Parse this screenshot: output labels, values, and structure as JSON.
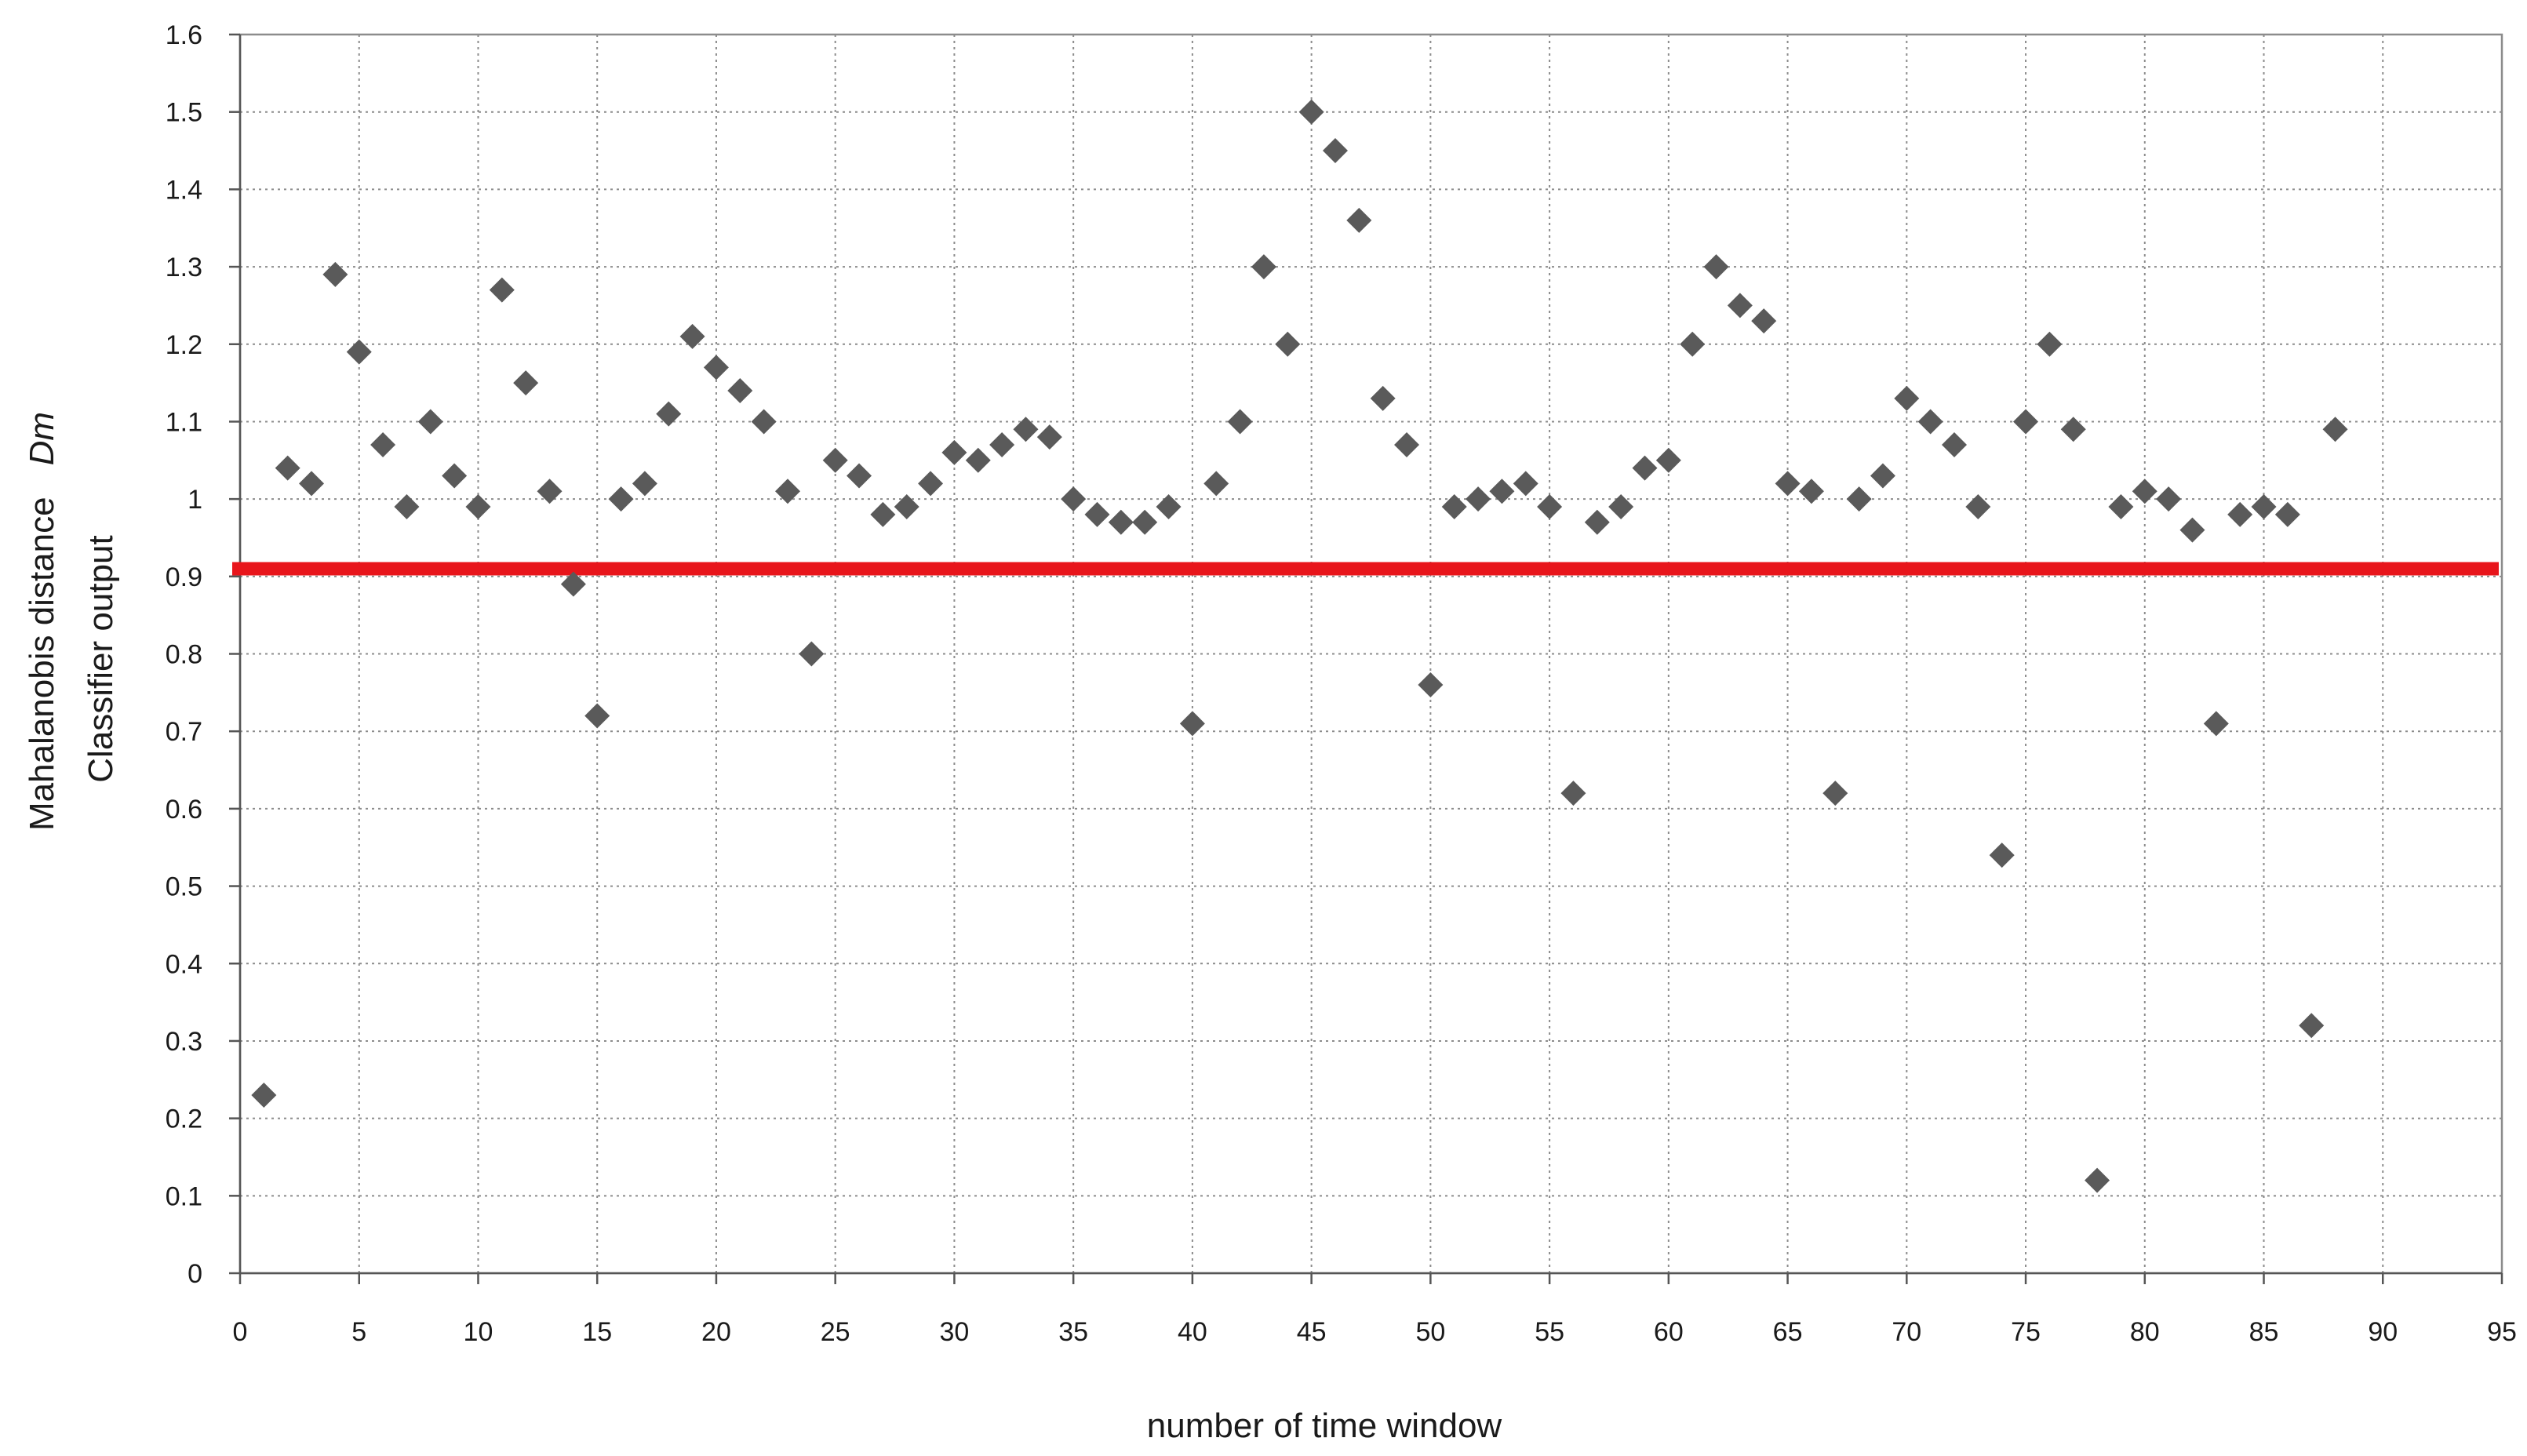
{
  "chart_data": {
    "type": "scatter",
    "xlabel": "number of time window",
    "ylabel_line1": "Mahalanobis distance",
    "ylabel_line1_italic": "Dm",
    "ylabel_line2": "Classifier output",
    "xlim": [
      0,
      95
    ],
    "ylim": [
      0,
      1.6
    ],
    "xticks": [
      0,
      5,
      10,
      15,
      20,
      25,
      30,
      35,
      40,
      45,
      50,
      55,
      60,
      65,
      70,
      75,
      80,
      85,
      90,
      95
    ],
    "yticks": [
      0,
      0.1,
      0.2,
      0.3,
      0.4,
      0.5,
      0.6,
      0.7,
      0.8,
      0.9,
      1,
      1.1,
      1.2,
      1.3,
      1.4,
      1.5,
      1.6
    ],
    "grid": true,
    "marker": "diamond",
    "marker_color": "#5a5a5a",
    "threshold": {
      "y": 0.91,
      "color": "#e8151b"
    },
    "x": [
      1,
      2,
      3,
      4,
      5,
      6,
      7,
      8,
      9,
      10,
      11,
      12,
      13,
      14,
      15,
      16,
      17,
      18,
      19,
      20,
      21,
      22,
      23,
      24,
      25,
      26,
      27,
      28,
      29,
      30,
      31,
      32,
      33,
      34,
      35,
      36,
      37,
      38,
      39,
      40,
      41,
      42,
      43,
      44,
      45,
      46,
      47,
      48,
      49,
      50,
      51,
      52,
      53,
      54,
      55,
      56,
      57,
      58,
      59,
      60,
      61,
      62,
      63,
      64,
      65,
      66,
      67,
      68,
      69,
      70,
      71,
      72,
      73,
      74,
      75,
      76,
      77,
      78,
      79,
      80,
      81,
      82,
      83,
      84,
      85,
      86,
      87,
      88
    ],
    "y": [
      0.23,
      1.04,
      1.02,
      1.29,
      1.19,
      1.07,
      0.99,
      1.1,
      1.03,
      0.99,
      1.27,
      1.15,
      1.01,
      0.89,
      0.72,
      1.0,
      1.02,
      1.11,
      1.21,
      1.17,
      1.14,
      1.1,
      1.01,
      0.8,
      1.05,
      1.03,
      0.98,
      0.99,
      1.02,
      1.06,
      1.05,
      1.07,
      1.09,
      1.08,
      1.0,
      0.98,
      0.97,
      0.97,
      0.99,
      0.71,
      1.02,
      1.1,
      1.3,
      1.2,
      1.5,
      1.45,
      1.36,
      1.13,
      1.07,
      0.76,
      0.99,
      1.0,
      1.01,
      1.02,
      0.99,
      0.62,
      0.97,
      0.99,
      1.04,
      1.05,
      1.2,
      1.3,
      1.25,
      1.23,
      1.02,
      1.01,
      0.62,
      1.0,
      1.03,
      1.13,
      1.1,
      1.07,
      0.99,
      0.54,
      1.1,
      1.2,
      1.09,
      0.12,
      0.99,
      1.01,
      1.0,
      0.96,
      0.71,
      0.98,
      0.99,
      0.98,
      0.32,
      1.09
    ]
  }
}
